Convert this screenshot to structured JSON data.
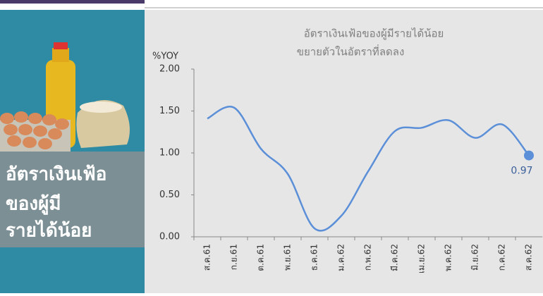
{
  "sidebar": {
    "lines": [
      "อัตราเงินเฟ้อ",
      "ของผู้มี",
      "รายได้น้อย"
    ]
  },
  "chart_data": {
    "type": "line",
    "title": [
      "อัตราเงินเฟ้อของผู้มีรายได้น้อย",
      "ขยายตัวในอัตราที่ลดลง"
    ],
    "y_label": "%YOY",
    "categories": [
      "ส.ค.61",
      "ก.ย.61",
      "ต.ค.61",
      "พ.ย.61",
      "ธ.ค.61",
      "ม.ค.62",
      "ก.พ.62",
      "มี.ค.62",
      "เม.ย.62",
      "พ.ค.62",
      "มิ.ย.62",
      "ก.ค.62",
      "ส.ค.62"
    ],
    "values": [
      1.41,
      1.54,
      1.05,
      0.75,
      0.1,
      0.25,
      0.78,
      1.26,
      1.3,
      1.39,
      1.18,
      1.34,
      0.97
    ],
    "color": "#5b8fd8",
    "ylim": [
      0,
      2
    ],
    "yticks": [
      {
        "value": 0,
        "label": "0.00"
      },
      {
        "value": 0.5,
        "label": "0.50"
      },
      {
        "value": 1,
        "label": "1.00"
      },
      {
        "value": 1.5,
        "label": "1.50"
      },
      {
        "value": 2,
        "label": "2.00"
      }
    ],
    "grid": false
  }
}
